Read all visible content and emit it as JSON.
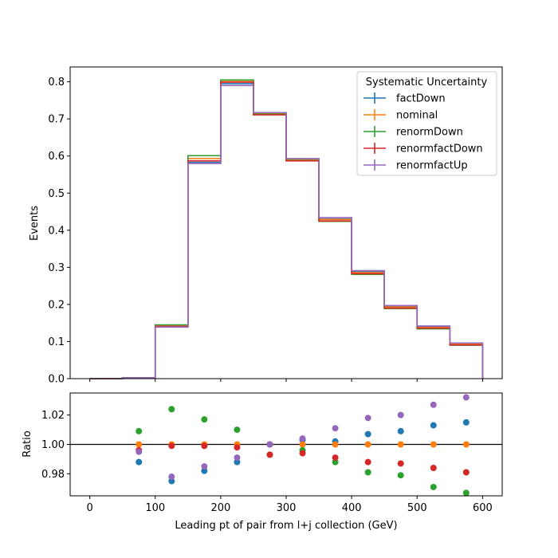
{
  "chart_data": {
    "type": "line",
    "xlabel": "Leading pt of pair from l+j collection (GeV)",
    "xlim": [
      -30,
      630
    ],
    "x_ticks": [
      0,
      100,
      200,
      300,
      400,
      500,
      600
    ],
    "bin_edges": [
      0,
      50,
      100,
      150,
      200,
      250,
      300,
      350,
      400,
      450,
      500,
      550,
      600
    ],
    "bin_centers": [
      25,
      75,
      125,
      175,
      225,
      275,
      325,
      375,
      425,
      475,
      525,
      575
    ],
    "top": {
      "ylabel": "Events",
      "ylim": [
        0,
        0.84
      ],
      "y_ticks": [
        0.0,
        0.1,
        0.2,
        0.3,
        0.4,
        0.5,
        0.6,
        0.7,
        0.8
      ],
      "series": [
        {
          "name": "factDown",
          "color": "#1f77b4",
          "values": [
            0.0,
            0.002,
            0.14,
            0.583,
            0.795,
            0.716,
            0.592,
            0.43,
            0.288,
            0.195,
            0.14,
            0.094
          ]
        },
        {
          "name": "nominal",
          "color": "#ff7f0e",
          "values": [
            0.0,
            0.002,
            0.142,
            0.593,
            0.801,
            0.714,
            0.59,
            0.429,
            0.286,
            0.193,
            0.138,
            0.093
          ]
        },
        {
          "name": "renormDown",
          "color": "#2ca02c",
          "values": [
            0.0,
            0.002,
            0.145,
            0.601,
            0.805,
            0.713,
            0.588,
            0.424,
            0.281,
            0.189,
            0.134,
            0.09
          ]
        },
        {
          "name": "renormfactDown",
          "color": "#d62728",
          "values": [
            0.0,
            0.002,
            0.141,
            0.587,
            0.799,
            0.711,
            0.587,
            0.425,
            0.283,
            0.19,
            0.136,
            0.091
          ]
        },
        {
          "name": "renormfactUp",
          "color": "#9467bd",
          "values": [
            0.0,
            0.002,
            0.139,
            0.58,
            0.79,
            0.717,
            0.593,
            0.434,
            0.291,
            0.197,
            0.142,
            0.096
          ]
        }
      ],
      "legend": {
        "title": "Systematic Uncertainty",
        "position": "top-right"
      }
    },
    "bottom": {
      "ylabel": "Ratio",
      "ylim": [
        0.965,
        1.035
      ],
      "y_ticks": [
        0.98,
        1.0,
        1.02
      ],
      "y_tick_labels": [
        "0.98",
        "1.00",
        "1.02"
      ],
      "reference_line": 1.0,
      "points": [
        {
          "series": "factDown",
          "color": "#1f77b4",
          "x": [
            75,
            125,
            175,
            225,
            275,
            325,
            375,
            425,
            475,
            525,
            575
          ],
          "y": [
            0.988,
            0.975,
            0.982,
            0.988,
            1.0,
            1.003,
            1.002,
            1.007,
            1.009,
            1.013,
            1.015
          ]
        },
        {
          "series": "nominal",
          "color": "#ff7f0e",
          "x": [
            75,
            125,
            175,
            225,
            275,
            325,
            375,
            425,
            475,
            525,
            575
          ],
          "y": [
            1.0,
            1.0,
            1.0,
            1.0,
            1.0,
            1.0,
            1.0,
            1.0,
            1.0,
            1.0,
            1.0
          ]
        },
        {
          "series": "renormDown",
          "color": "#2ca02c",
          "x": [
            75,
            125,
            175,
            225,
            275,
            325,
            375,
            425,
            475,
            525,
            575
          ],
          "y": [
            1.009,
            1.024,
            1.017,
            1.01,
            0.993,
            0.996,
            0.988,
            0.981,
            0.979,
            0.971,
            0.967
          ]
        },
        {
          "series": "renormfactDown",
          "color": "#d62728",
          "x": [
            75,
            125,
            175,
            225,
            275,
            325,
            375,
            425,
            475,
            525,
            575
          ],
          "y": [
            0.996,
            0.999,
            0.999,
            0.998,
            0.993,
            0.994,
            0.991,
            0.988,
            0.987,
            0.984,
            0.981
          ]
        },
        {
          "series": "renormfactUp",
          "color": "#9467bd",
          "x": [
            75,
            125,
            175,
            225,
            275,
            325,
            375,
            425,
            475,
            525,
            575
          ],
          "y": [
            0.995,
            0.978,
            0.985,
            0.991,
            1.0,
            1.004,
            1.011,
            1.018,
            1.02,
            1.027,
            1.032
          ]
        }
      ]
    }
  }
}
